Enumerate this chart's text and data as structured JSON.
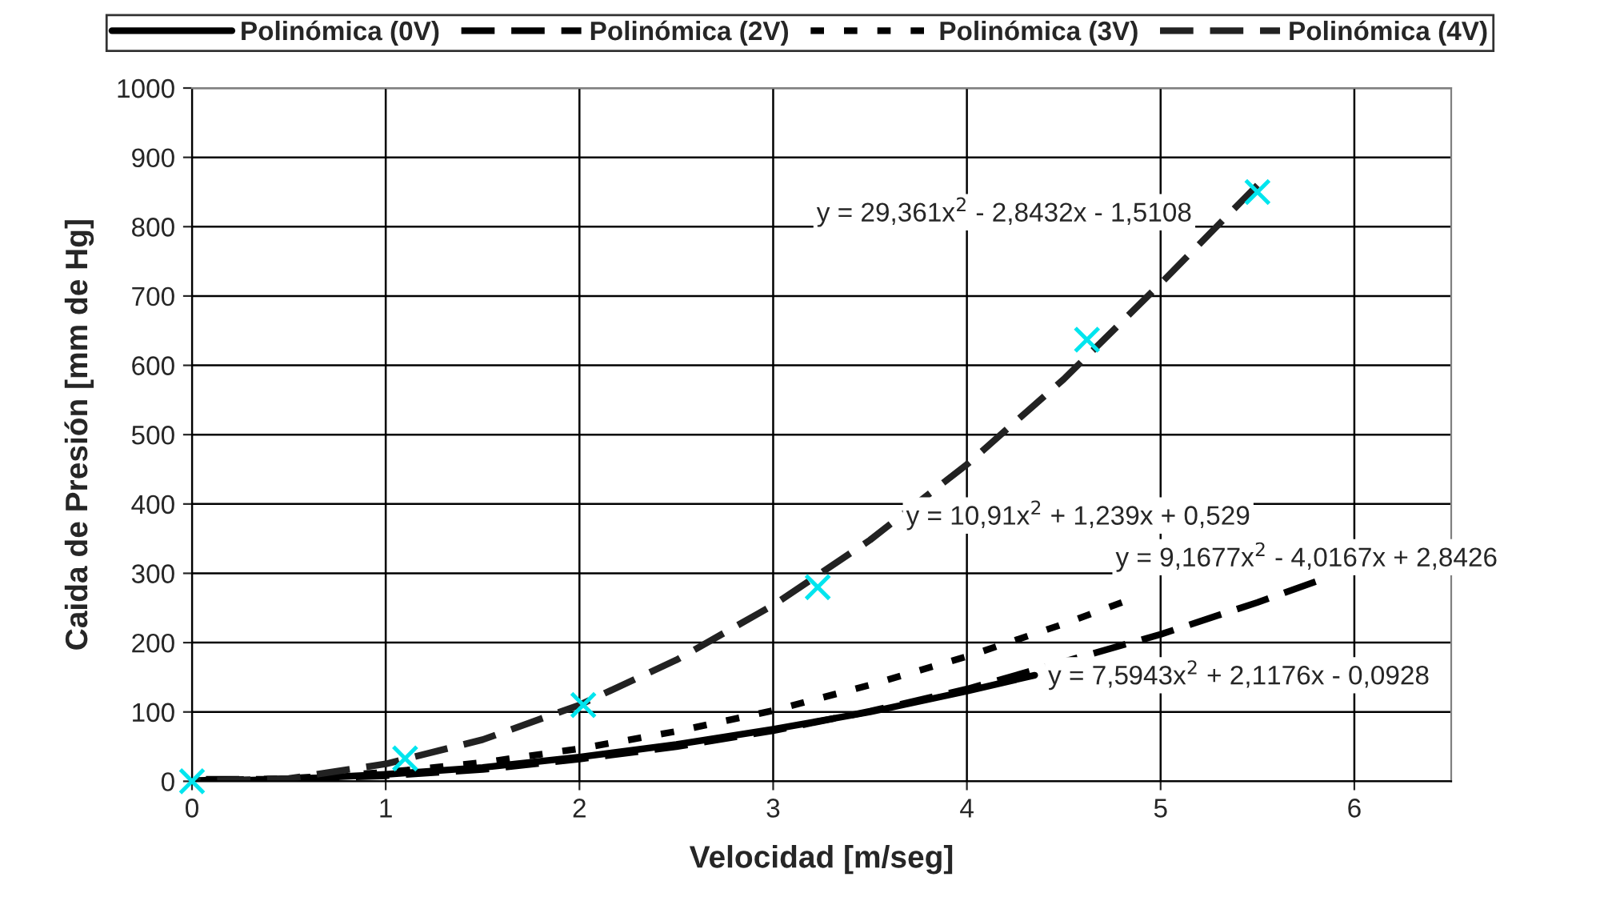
{
  "chart_data": {
    "type": "line",
    "xlabel": "Velocidad [m/seg]",
    "ylabel": "Caida de Presión [mm de Hg]",
    "xlim": [
      0,
      6.5
    ],
    "xticks": [
      0,
      1,
      2,
      3,
      4,
      5,
      6
    ],
    "ylim": [
      0,
      1000
    ],
    "yticks": [
      0,
      100,
      200,
      300,
      400,
      500,
      600,
      700,
      800,
      900,
      1000
    ],
    "grid": true,
    "legend": "top",
    "series": [
      {
        "name": "Polinómica (0V)",
        "line_style": "solid",
        "color": "#000000",
        "x": [
          0,
          0.5,
          1,
          1.5,
          2,
          2.5,
          3,
          3.5,
          4,
          4.35
        ],
        "values": [
          0,
          3,
          10,
          20,
          35,
          53,
          75,
          100,
          130,
          153
        ]
      },
      {
        "name": "Polinómica (2V)",
        "line_style": "dashed",
        "color": "#000000",
        "x": [
          0,
          0.5,
          1,
          1.5,
          2,
          2.5,
          3,
          3.5,
          4,
          4.5,
          5,
          5.5,
          5.8
        ],
        "values": [
          3,
          3,
          8,
          17,
          32,
          50,
          73,
          101,
          133,
          null,
          212,
          258,
          288
        ]
      },
      {
        "name": "Polinómica (3V)",
        "line_style": "dotted",
        "color": "#000000",
        "x": [
          0,
          0.5,
          1,
          1.5,
          2,
          2.5,
          3,
          3.5,
          4,
          4.5,
          4.8
        ],
        "values": [
          1,
          4,
          13,
          27,
          47,
          72,
          102,
          139,
          180,
          227,
          258
        ]
      },
      {
        "name": "Polinómica (4V)",
        "line_style": "dashed",
        "color": "#222222",
        "x": [
          0,
          0.5,
          1,
          1.5,
          2,
          2.5,
          3,
          3.5,
          4,
          4.5,
          5,
          5.5
        ],
        "values": [
          0,
          4,
          25,
          60,
          110,
          175,
          254,
          348,
          457,
          580,
          718,
          860
        ]
      },
      {
        "type": "scatter",
        "marker": "cross",
        "color": "#00e5ee",
        "x": [
          0,
          1.1,
          2.02,
          3.23,
          4.62,
          5.5
        ],
        "values": [
          0,
          33,
          110,
          280,
          637,
          850
        ]
      }
    ],
    "annotations": [
      {
        "text": "y = 29,361x$^{2}$ - 2,8432x - 1,5108",
        "x": 5.3,
        "y": 808
      },
      {
        "text": "y = 10,91x$^{2}$ + 1,239x + 0,529",
        "x": 3.64,
        "y": 377
      },
      {
        "text": "y = 9,1677x$^{2}$ - 4,0167x + 2,8426",
        "x": 5.8,
        "y": 288
      },
      {
        "text": "y = 7,5943x$^{2}$ + 2,1176x - 0,0928",
        "x": 4.35,
        "y": 153
      }
    ]
  }
}
